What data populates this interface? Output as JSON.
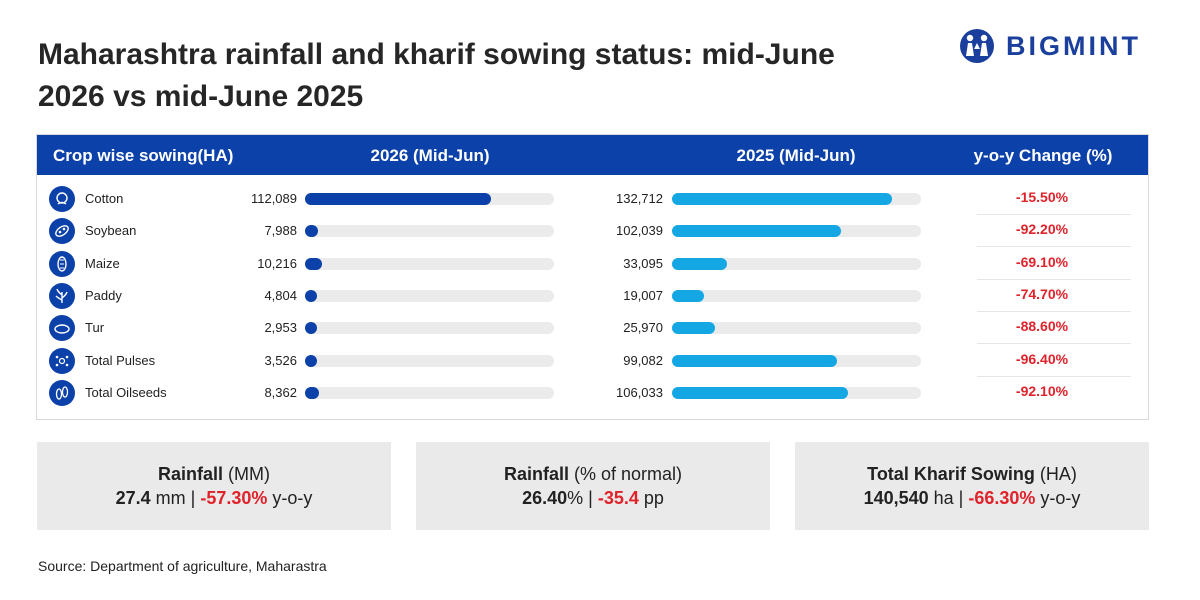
{
  "title": "Maharashtra rainfall and kharif sowing status: mid-June 2026 vs mid-June 2025",
  "logo": {
    "text": "BIGMINT",
    "color": "#1a3f9c"
  },
  "colors": {
    "header": "#0b41a8",
    "bar_2026": "#0b41a8",
    "bar_2025": "#14a7e4",
    "negative": "#e0222b"
  },
  "table": {
    "headers": {
      "crop": "Crop wise sowing(HA)",
      "y2026": "2026 (Mid-Jun)",
      "y2025": "2025 (Mid-Jun)",
      "change": "y-o-y Change (%)"
    },
    "rows": [
      {
        "crop": "Cotton",
        "icon": "cotton-icon",
        "v2026": "112,089",
        "v2025": "132,712",
        "change": "-15.50%"
      },
      {
        "crop": "Soybean",
        "icon": "soybean-icon",
        "v2026": "7,988",
        "v2025": "102,039",
        "change": "-92.20%"
      },
      {
        "crop": "Maize",
        "icon": "maize-icon",
        "v2026": "10,216",
        "v2025": "33,095",
        "change": "-69.10%"
      },
      {
        "crop": "Paddy",
        "icon": "paddy-icon",
        "v2026": "4,804",
        "v2025": "19,007",
        "change": "-74.70%"
      },
      {
        "crop": "Tur",
        "icon": "tur-icon",
        "v2026": "2,953",
        "v2025": "25,970",
        "change": "-88.60%"
      },
      {
        "crop": "Total Pulses",
        "icon": "pulses-icon",
        "v2026": "3,526",
        "v2025": "99,082",
        "change": "-96.40%"
      },
      {
        "crop": "Total Oilseeds",
        "icon": "oilseeds-icon",
        "v2026": "8,362",
        "v2025": "106,033",
        "change": "-92.10%"
      }
    ]
  },
  "chart_data": {
    "type": "bar",
    "title": "Crop wise sowing(HA)",
    "categories": [
      "Cotton",
      "Soybean",
      "Maize",
      "Paddy",
      "Tur",
      "Total Pulses",
      "Total Oilseeds"
    ],
    "series": [
      {
        "name": "2026 (Mid-Jun)",
        "values": [
          112089,
          7988,
          10216,
          4804,
          2953,
          3526,
          8362
        ]
      },
      {
        "name": "2025 (Mid-Jun)",
        "values": [
          132712,
          102039,
          33095,
          19007,
          25970,
          99082,
          106033
        ]
      }
    ],
    "yoy_change_pct": [
      -15.5,
      -92.2,
      -69.1,
      -74.7,
      -88.6,
      -96.4,
      -92.1
    ],
    "xlim": [
      0,
      150000
    ],
    "orientation": "horizontal"
  },
  "cards": [
    {
      "label": "Rainfall",
      "unit": " (MM)",
      "value": "27.4",
      "value_unit": " mm | ",
      "delta": "-57.30%",
      "suffix": " y-o-y"
    },
    {
      "label": "Rainfall",
      "unit": " (% of normal)",
      "value": "26.40",
      "value_unit": "% | ",
      "delta": "-35.4",
      "suffix": " pp"
    },
    {
      "label": "Total Kharif Sowing",
      "unit": " (HA)",
      "value": "140,540",
      "value_unit": " ha | ",
      "delta": "-66.30%",
      "suffix": " y-o-y"
    }
  ],
  "source": "Source: Department of agriculture, Maharastra"
}
